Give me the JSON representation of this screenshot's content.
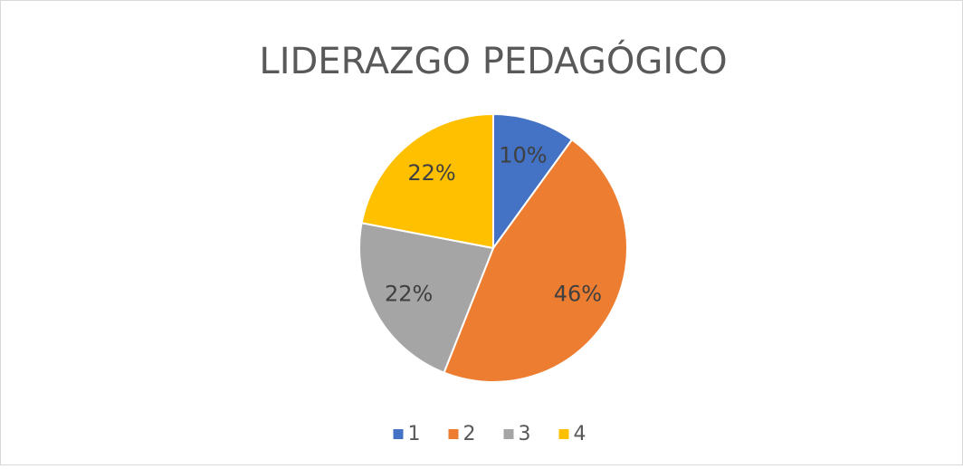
{
  "chart_data": {
    "type": "pie",
    "title": "LIDERAZGO PEDAGÓGICO",
    "categories": [
      "1",
      "2",
      "3",
      "4"
    ],
    "values": [
      10,
      46,
      22,
      22
    ],
    "value_labels": [
      "10%",
      "46%",
      "22%",
      "22%"
    ],
    "colors": [
      "#4472c4",
      "#ed7d31",
      "#a5a5a5",
      "#ffc000"
    ],
    "legend": "bottom"
  }
}
